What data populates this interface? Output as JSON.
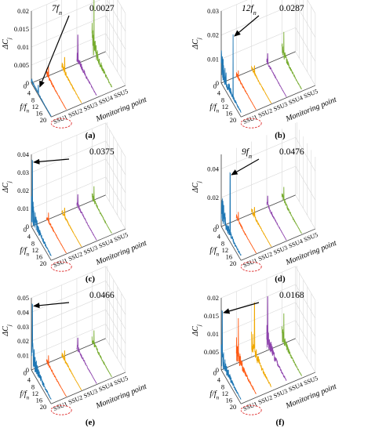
{
  "figure": {
    "series_colors": {
      "SSU1": "#1f77b4",
      "SSU2": "#ff5a14",
      "SSU3": "#f0a800",
      "SSU4": "#8e44ad",
      "SSU5": "#77ac30"
    },
    "highlight_color": "#e03030",
    "arrow_color": "#000000"
  },
  "chart_data": [
    {
      "panel": "(a)",
      "type": "line",
      "ylabel": "ΔC_j",
      "xlabel": "f/f_n",
      "zlabel": "Monitoring point",
      "zcategories": [
        "SSU1",
        "SSU2",
        "SSU3",
        "SSU4",
        "SSU5"
      ],
      "highlighted_category": "SSU1",
      "y_ticks": [
        "0",
        "0.005",
        "0.01",
        "0.015",
        "0.02"
      ],
      "ylim": [
        0,
        0.02
      ],
      "x_ticks": [
        "0",
        "4",
        "8",
        "12",
        "16",
        "20"
      ],
      "xlim": [
        0,
        20
      ],
      "annotation": {
        "harmonic_label": "7",
        "harmonic_sub": "n",
        "value_text": "0.0027",
        "x": 7,
        "value": 0.0027
      },
      "peaks": {
        "SSU1": 0.0027,
        "SSU2": 0.004,
        "SSU3": 0.005,
        "SSU4": 0.0085,
        "SSU5": 0.018
      }
    },
    {
      "panel": "(b)",
      "type": "line",
      "ylabel": "ΔC_j",
      "xlabel": "f/f_n",
      "zlabel": "Monitoring point",
      "zcategories": [
        "SSU1",
        "SSU2",
        "SSU3",
        "SSU4",
        "SSU5"
      ],
      "highlighted_category": "SSU1",
      "y_ticks": [
        "0",
        "0.01",
        "0.02",
        "0.03"
      ],
      "ylim": [
        0,
        0.03
      ],
      "x_ticks": [
        "0",
        "4",
        "8",
        "12",
        "16",
        "20"
      ],
      "xlim": [
        0,
        20
      ],
      "annotation": {
        "harmonic_label": "12",
        "harmonic_sub": "n",
        "value_text": "0.0287",
        "x": 12,
        "value": 0.0287
      },
      "peaks": {
        "SSU1": 0.0287,
        "SSU2": 0.004,
        "SSU3": 0.004,
        "SSU4": 0.005,
        "SSU5": 0.012
      }
    },
    {
      "panel": "(c)",
      "type": "line",
      "ylabel": "ΔC_j",
      "xlabel": "f/f_n",
      "zlabel": "Monitoring point",
      "zcategories": [
        "SSU1",
        "SSU2",
        "SSU3",
        "SSU4",
        "SSU5"
      ],
      "highlighted_category": "SSU1",
      "y_ticks": [
        "0",
        "0.01",
        "0.02",
        "0.03",
        "0.04"
      ],
      "ylim": [
        0,
        0.04
      ],
      "x_ticks": [
        "0",
        "4",
        "8",
        "12",
        "16",
        "20"
      ],
      "xlim": [
        0,
        20
      ],
      "annotation": {
        "harmonic_label": "",
        "harmonic_sub": "",
        "value_text": "0.0375",
        "x": 1,
        "value": 0.0375
      },
      "peaks": {
        "SSU1": 0.0375,
        "SSU2": 0.006,
        "SSU3": 0.006,
        "SSU4": 0.008,
        "SSU5": 0.01
      }
    },
    {
      "panel": "(d)",
      "type": "line",
      "ylabel": "ΔC_j",
      "xlabel": "f/f_n",
      "zlabel": "Monitoring point",
      "zcategories": [
        "SSU1",
        "SSU2",
        "SSU3",
        "SSU4",
        "SSU5"
      ],
      "highlighted_category": "SSU1",
      "y_ticks": [
        "0",
        "0.02",
        "0.04"
      ],
      "ylim": [
        0,
        0.05
      ],
      "x_ticks": [
        "0",
        "4",
        "8",
        "12",
        "16",
        "20"
      ],
      "xlim": [
        0,
        20
      ],
      "annotation": {
        "harmonic_label": "9",
        "harmonic_sub": "n",
        "value_text": "0.0476",
        "x": 9,
        "value": 0.0476
      },
      "peaks": {
        "SSU1": 0.0476,
        "SSU2": 0.008,
        "SSU3": 0.008,
        "SSU4": 0.009,
        "SSU5": 0.012
      }
    },
    {
      "panel": "(e)",
      "type": "line",
      "ylabel": "ΔC_j",
      "xlabel": "f/f_n",
      "zlabel": "Monitoring point",
      "zcategories": [
        "SSU1",
        "SSU2",
        "SSU3",
        "SSU4",
        "SSU5"
      ],
      "highlighted_category": "SSU1",
      "y_ticks": [
        "0",
        "0.01",
        "0.02",
        "0.03",
        "0.04",
        "0.05"
      ],
      "ylim": [
        0,
        0.05
      ],
      "x_ticks": [
        "0",
        "4",
        "8",
        "12",
        "16",
        "20"
      ],
      "xlim": [
        0,
        20
      ],
      "annotation": {
        "harmonic_label": "",
        "harmonic_sub": "",
        "value_text": "0.0466",
        "x": 1,
        "value": 0.0466
      },
      "peaks": {
        "SSU1": 0.0466,
        "SSU2": 0.008,
        "SSU3": 0.008,
        "SSU4": 0.01,
        "SSU5": 0.012
      }
    },
    {
      "panel": "(f)",
      "type": "line",
      "ylabel": "ΔC_j",
      "xlabel": "f/f_n",
      "zlabel": "Monitoring point",
      "zcategories": [
        "SSU1",
        "SSU2",
        "SSU3",
        "SSU4",
        "SSU5"
      ],
      "highlighted_category": "SSU1",
      "y_ticks": [
        "0",
        "0.005",
        "0.01",
        "0.015",
        "0.02"
      ],
      "ylim": [
        0,
        0.02
      ],
      "x_ticks": [
        "0",
        "4",
        "8",
        "12",
        "16",
        "20"
      ],
      "xlim": [
        0,
        20
      ],
      "annotation": {
        "harmonic_label": "",
        "harmonic_sub": "",
        "value_text": "0.0168",
        "x": 1,
        "value": 0.0168
      },
      "peaks": {
        "SSU1": 0.0168,
        "SSU2": 0.0135,
        "SSU3": 0.0165,
        "SSU4": 0.0155,
        "SSU5": 0.0095
      }
    }
  ]
}
